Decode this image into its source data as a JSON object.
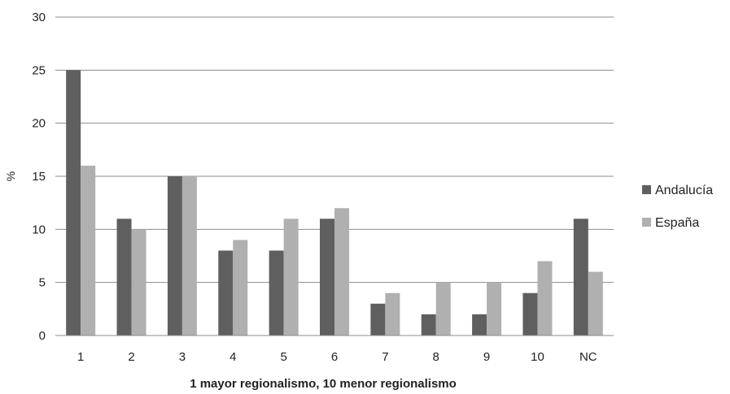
{
  "chart_data": {
    "type": "bar",
    "title": "",
    "xlabel": "1 mayor regionalismo, 10 menor regionalismo",
    "ylabel": "%",
    "ylim": [
      0,
      30
    ],
    "yticks": [
      0,
      5,
      10,
      15,
      20,
      25,
      30
    ],
    "grid": true,
    "legend_position": "right",
    "categories": [
      "1",
      "2",
      "3",
      "4",
      "5",
      "6",
      "7",
      "8",
      "9",
      "10",
      "NC"
    ],
    "series": [
      {
        "name": "Andalucía",
        "color": "#5f5f5f",
        "values": [
          25,
          11,
          15,
          8,
          8,
          11,
          3,
          2,
          2,
          4,
          11
        ]
      },
      {
        "name": "España",
        "color": "#b0b0b0",
        "values": [
          16,
          10,
          15,
          9,
          11,
          12,
          4,
          5,
          5,
          7,
          6
        ]
      }
    ]
  }
}
